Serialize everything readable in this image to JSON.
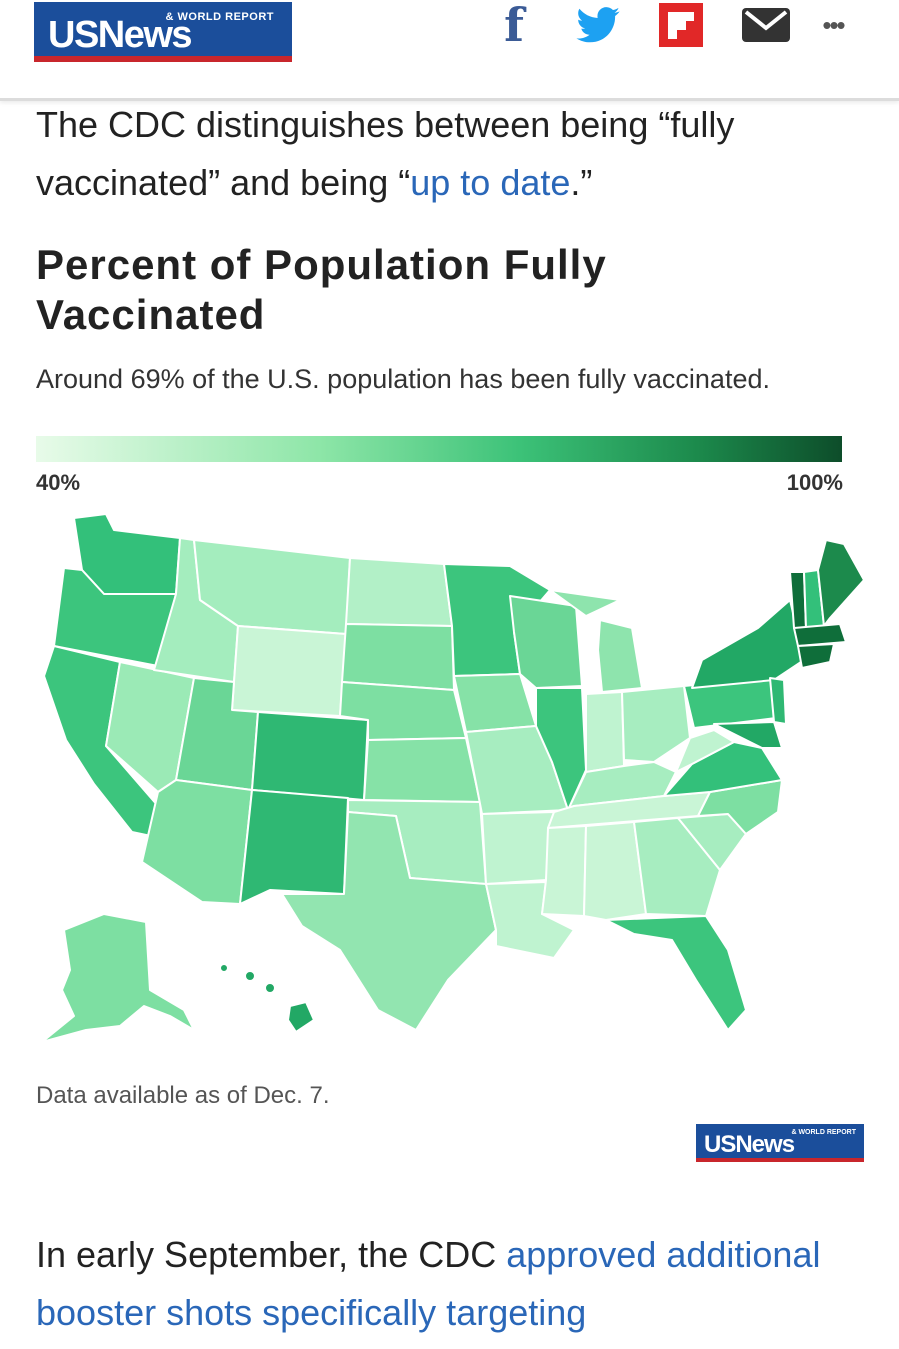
{
  "header": {
    "logo_main": "USNews",
    "logo_sub": "& WORLD REPORT",
    "share_icons": [
      "facebook-icon",
      "twitter-icon",
      "flipboard-icon",
      "mail-icon",
      "more-icon"
    ],
    "facebook_glyph": "f",
    "more_glyph": "•••"
  },
  "intro": {
    "text_before": "The CDC distinguishes between being “fully vaccinated” and being “",
    "link_text": "up to date",
    "text_after": ".”"
  },
  "chart": {
    "title": "Percent of Population Fully Vaccinated",
    "subtitle": "Around 69% of the U.S. population has been fully vaccinated.",
    "legend_min": "40%",
    "legend_max": "100%",
    "source_note": "Data available as of Dec. 7."
  },
  "chart_data": {
    "type": "choropleth-map",
    "scale": {
      "min": 40,
      "max": 100,
      "unit": "%"
    },
    "colors": {
      "low": "#e8fbe9",
      "mid": "#3cc278",
      "high": "#0d4d2a"
    }
  },
  "footer_logo": {
    "logo_main": "USNews",
    "logo_sub": "& WORLD REPORT"
  },
  "outro": {
    "text_before": "In early September, the CDC ",
    "link_text": "approved additional booster shots specifically targeting"
  }
}
